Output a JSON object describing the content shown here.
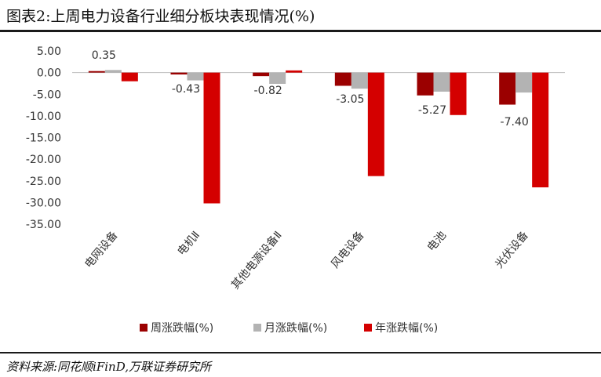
{
  "header": {
    "title": "图表2:上周电力设备行业细分板块表现情况(%)"
  },
  "footer": {
    "source": "资料来源:同花顺iFinD,万联证券研究所"
  },
  "colors": {
    "weekly": "#9b0000",
    "monthly": "#b3b3b3",
    "yearly": "#d40000"
  },
  "chart_data": {
    "type": "bar",
    "categories": [
      "电网设备",
      "电机Ⅱ",
      "其他电源设备Ⅱ",
      "风电设备",
      "电池",
      "光伏设备"
    ],
    "series": [
      {
        "name": "周涨跌幅(%)",
        "values": [
          0.35,
          -0.43,
          -0.82,
          -3.05,
          -5.27,
          -7.4
        ]
      },
      {
        "name": "月涨跌幅(%)",
        "values": [
          0.6,
          -1.8,
          -2.6,
          -3.7,
          -4.4,
          -4.6
        ]
      },
      {
        "name": "年涨跌幅(%)",
        "values": [
          -2.0,
          -30.2,
          0.5,
          -23.9,
          -9.8,
          -26.5
        ]
      }
    ],
    "data_labels": [
      "0.35",
      "-0.43",
      "-0.82",
      "-3.05",
      "-5.27",
      "-7.40"
    ],
    "ylim": [
      -35,
      5
    ],
    "yticks": [
      "5.00",
      "0.00",
      "-5.00",
      "-10.00",
      "-15.00",
      "-20.00",
      "-25.00",
      "-30.00",
      "-35.00"
    ],
    "grid": false,
    "legend": "bottom"
  }
}
